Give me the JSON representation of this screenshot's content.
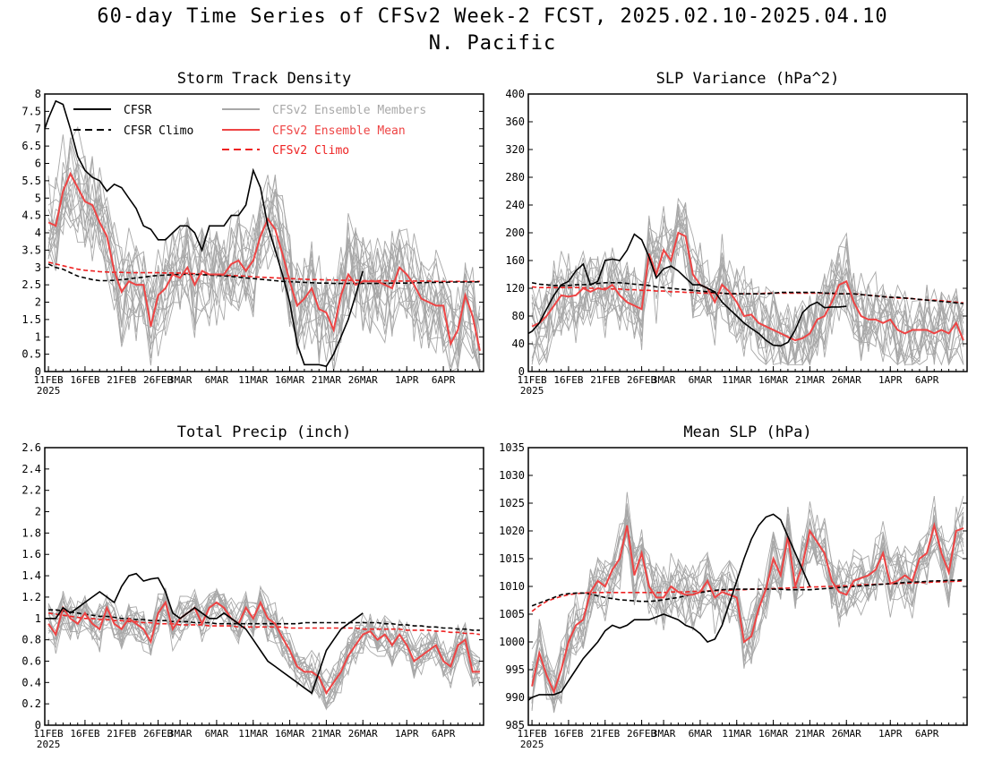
{
  "figure": {
    "title": "60-day Time Series of CFSv2 Week-2 FCST, 2025.02.10-2025.04.10",
    "subtitle": "N. Pacific"
  },
  "colors": {
    "cfsr": "#000000",
    "members": "#a8a8a8",
    "ens_mean": "#ee4444",
    "cfsv2_climo": "#ee2222"
  },
  "legend": {
    "cfsr": "CFSR",
    "cfsr_climo": "CFSR Climo",
    "members": "CFSv2 Ensemble Members",
    "ens_mean": "CFSv2 Ensemble Mean",
    "cfsv2_climo": "CFSv2 Climo"
  },
  "x_tick_labels": [
    "11FEB",
    "16FEB",
    "21FEB",
    "26FEB",
    "3MAR",
    "6MAR",
    "11MAR",
    "16MAR",
    "21MAR",
    "26MAR",
    "1APR",
    "6APR"
  ],
  "x_tick_days": [
    0,
    5,
    10,
    15,
    18,
    23,
    28,
    33,
    38,
    43,
    49,
    54
  ],
  "x_year_label": "2025",
  "chart_data": [
    {
      "type": "line",
      "title": "Storm Track Density",
      "xlabel": "",
      "ylabel": "",
      "x_unit": "days since 11FEB2025",
      "xlim": [
        -0.5,
        59.5
      ],
      "ylim": [
        0,
        8
      ],
      "yticks": [
        "0",
        "0.5",
        "1",
        "1.5",
        "2",
        "2.5",
        "3",
        "3.5",
        "4",
        "4.5",
        "5",
        "5.5",
        "6",
        "6.5",
        "7",
        "7.5",
        "8"
      ],
      "legend_position": "top",
      "cfsr_days": [
        -0.5,
        0,
        1,
        2,
        3,
        4,
        5,
        6,
        7,
        8,
        9,
        10,
        11,
        12,
        13,
        14,
        15,
        16,
        17,
        18,
        19,
        20,
        21,
        22,
        23,
        24,
        25,
        26,
        27,
        28,
        29,
        30,
        31,
        32,
        33,
        34,
        35,
        36,
        37,
        38,
        39,
        40,
        41,
        42,
        43
      ],
      "cfsr": [
        7.0,
        7.3,
        7.8,
        7.7,
        7.0,
        6.2,
        5.8,
        5.6,
        5.5,
        5.2,
        5.4,
        5.3,
        5.0,
        4.7,
        4.2,
        4.1,
        3.8,
        3.8,
        4.0,
        4.2,
        4.2,
        4.0,
        3.5,
        4.2,
        4.2,
        4.2,
        4.5,
        4.5,
        4.8,
        5.8,
        5.3,
        4.2,
        3.5,
        2.8,
        2.0,
        0.8,
        0.2,
        0.2,
        0.2,
        0.15,
        0.5,
        1.0,
        1.5,
        2.2,
        2.9
      ],
      "cfsr_climo": [
        3.1,
        3.0,
        2.95,
        2.85,
        2.75,
        2.7,
        2.65,
        2.62,
        2.62,
        2.63,
        2.65,
        2.67,
        2.7,
        2.72,
        2.75,
        2.77,
        2.78,
        2.79,
        2.8,
        2.8,
        2.8,
        2.79,
        2.78,
        2.77,
        2.76,
        2.74,
        2.72,
        2.7,
        2.68,
        2.66,
        2.64,
        2.62,
        2.6,
        2.59,
        2.58,
        2.57,
        2.56,
        2.55,
        2.55,
        2.54,
        2.54,
        2.54,
        2.54,
        2.54,
        2.54,
        2.54,
        2.54,
        2.55,
        2.55,
        2.55,
        2.56,
        2.56,
        2.57,
        2.57,
        2.57,
        2.58,
        2.58,
        2.58,
        2.58,
        2.59
      ],
      "cfsv2_climo": [
        3.15,
        3.1,
        3.05,
        3.0,
        2.95,
        2.92,
        2.9,
        2.88,
        2.87,
        2.86,
        2.86,
        2.85,
        2.85,
        2.85,
        2.85,
        2.85,
        2.84,
        2.84,
        2.84,
        2.83,
        2.82,
        2.81,
        2.8,
        2.79,
        2.78,
        2.77,
        2.76,
        2.75,
        2.73,
        2.72,
        2.71,
        2.7,
        2.69,
        2.68,
        2.67,
        2.66,
        2.65,
        2.65,
        2.64,
        2.64,
        2.63,
        2.63,
        2.63,
        2.62,
        2.62,
        2.62,
        2.62,
        2.61,
        2.61,
        2.61,
        2.61,
        2.61,
        2.61,
        2.6,
        2.6,
        2.6,
        2.6,
        2.6,
        2.6,
        2.6
      ],
      "ens_mean": [
        4.3,
        4.2,
        5.2,
        5.7,
        5.3,
        4.9,
        4.8,
        4.3,
        3.9,
        2.9,
        2.3,
        2.6,
        2.5,
        2.5,
        1.3,
        2.2,
        2.4,
        2.8,
        2.7,
        3.0,
        2.5,
        2.9,
        2.8,
        2.8,
        2.8,
        3.1,
        3.2,
        2.9,
        3.2,
        3.9,
        4.4,
        4.1,
        3.4,
        2.6,
        1.9,
        2.1,
        2.4,
        1.8,
        1.7,
        1.2,
        2.2,
        2.8,
        2.5,
        2.6,
        2.6,
        2.6,
        2.5,
        2.4,
        3.0,
        2.8,
        2.5,
        2.1,
        2.0,
        1.9,
        1.9,
        0.8,
        1.2,
        2.2,
        1.6,
        0.6
      ],
      "members_ylim": [
        0,
        7.5
      ],
      "member_spread": 0.9,
      "member_count": 16
    },
    {
      "type": "line",
      "title": "SLP Variance (hPa^2)",
      "xlabel": "",
      "ylabel": "",
      "x_unit": "days since 11FEB2025",
      "xlim": [
        -0.5,
        59.5
      ],
      "ylim": [
        0,
        400
      ],
      "yticks": [
        "0",
        "40",
        "80",
        "120",
        "160",
        "200",
        "240",
        "280",
        "320",
        "360",
        "400"
      ],
      "cfsr_days": [
        -0.5,
        0,
        1,
        2,
        3,
        4,
        5,
        6,
        7,
        8,
        9,
        10,
        11,
        12,
        13,
        14,
        15,
        16,
        17,
        18,
        19,
        20,
        21,
        22,
        23,
        24,
        25,
        26,
        27,
        28,
        29,
        30,
        31,
        32,
        33,
        34,
        35,
        36,
        37,
        38,
        39,
        40,
        41,
        42,
        43
      ],
      "cfsr": [
        55,
        58,
        70,
        90,
        110,
        125,
        130,
        145,
        155,
        125,
        130,
        160,
        162,
        160,
        175,
        198,
        190,
        165,
        135,
        148,
        152,
        145,
        135,
        125,
        125,
        120,
        115,
        100,
        90,
        80,
        70,
        62,
        55,
        45,
        38,
        37,
        42,
        60,
        85,
        95,
        100,
        92,
        93,
        93,
        94
      ],
      "cfsr_climo": [
        128,
        126,
        125,
        124,
        124,
        124,
        125,
        125,
        126,
        127,
        128,
        128,
        128,
        127,
        126,
        125,
        124,
        122,
        121,
        120,
        119,
        118,
        117,
        116,
        115,
        114,
        113,
        112,
        112,
        112,
        112,
        112,
        112,
        113,
        114,
        114,
        114,
        114,
        114,
        114,
        113,
        113,
        112,
        112,
        112,
        111,
        110,
        109,
        108,
        107,
        107,
        106,
        105,
        104,
        103,
        102,
        101,
        100,
        99,
        98
      ],
      "cfsv2_climo": [
        122,
        121,
        121,
        121,
        121,
        121,
        121,
        121,
        120,
        120,
        120,
        119,
        119,
        118,
        118,
        117,
        117,
        116,
        116,
        115,
        115,
        114,
        114,
        113,
        113,
        113,
        113,
        112,
        112,
        112,
        112,
        112,
        113,
        113,
        113,
        113,
        113,
        113,
        113,
        113,
        113,
        112,
        112,
        112,
        112,
        111,
        110,
        109,
        108,
        107,
        106,
        106,
        105,
        104,
        103,
        103,
        102,
        101,
        100,
        99
      ],
      "ens_mean": [
        65,
        70,
        80,
        95,
        110,
        108,
        110,
        120,
        115,
        120,
        118,
        125,
        110,
        100,
        95,
        90,
        170,
        140,
        175,
        160,
        200,
        195,
        140,
        125,
        120,
        100,
        125,
        115,
        100,
        80,
        82,
        70,
        65,
        60,
        55,
        50,
        45,
        48,
        55,
        75,
        80,
        100,
        125,
        130,
        100,
        80,
        75,
        75,
        70,
        75,
        60,
        55,
        60,
        60,
        60,
        55,
        60,
        55,
        70,
        45
      ],
      "members_ylim": [
        10,
        330
      ],
      "member_spread": 38,
      "member_count": 16
    },
    {
      "type": "line",
      "title": "Total Precip (inch)",
      "xlabel": "",
      "ylabel": "",
      "x_unit": "days since 11FEB2025",
      "xlim": [
        -0.5,
        59.5
      ],
      "ylim": [
        0,
        2.6
      ],
      "yticks": [
        "0",
        "0.2",
        "0.4",
        "0.6",
        "0.8",
        "1",
        "1.2",
        "1.4",
        "1.6",
        "1.8",
        "2",
        "2.2",
        "2.4",
        "2.6"
      ],
      "cfsr_days": [
        -0.5,
        0,
        1,
        2,
        3,
        4,
        5,
        6,
        7,
        8,
        9,
        10,
        11,
        12,
        13,
        14,
        15,
        16,
        17,
        18,
        19,
        20,
        21,
        22,
        23,
        24,
        25,
        26,
        27,
        28,
        29,
        30,
        31,
        32,
        33,
        34,
        35,
        36,
        37,
        38,
        39,
        40,
        41,
        42,
        43
      ],
      "cfsr": [
        1.0,
        1.0,
        1.0,
        1.1,
        1.05,
        1.1,
        1.15,
        1.2,
        1.25,
        1.2,
        1.15,
        1.3,
        1.4,
        1.42,
        1.35,
        1.37,
        1.38,
        1.25,
        1.05,
        1.0,
        1.05,
        1.1,
        1.05,
        1.0,
        1.0,
        1.05,
        1.0,
        0.95,
        0.9,
        0.8,
        0.7,
        0.6,
        0.55,
        0.5,
        0.45,
        0.4,
        0.35,
        0.3,
        0.5,
        0.7,
        0.8,
        0.9,
        0.95,
        1.0,
        1.05
      ],
      "cfsr_climo": [
        1.08,
        1.08,
        1.07,
        1.06,
        1.05,
        1.04,
        1.03,
        1.02,
        1.02,
        1.01,
        1.0,
        1.0,
        0.99,
        0.99,
        0.98,
        0.98,
        0.98,
        0.97,
        0.97,
        0.97,
        0.96,
        0.96,
        0.96,
        0.95,
        0.95,
        0.95,
        0.95,
        0.95,
        0.95,
        0.95,
        0.95,
        0.95,
        0.95,
        0.95,
        0.95,
        0.96,
        0.96,
        0.96,
        0.96,
        0.96,
        0.96,
        0.96,
        0.96,
        0.96,
        0.96,
        0.96,
        0.95,
        0.95,
        0.94,
        0.94,
        0.93,
        0.93,
        0.92,
        0.92,
        0.91,
        0.91,
        0.9,
        0.9,
        0.89,
        0.89
      ],
      "cfsv2_climo": [
        1.05,
        1.04,
        1.03,
        1.02,
        1.01,
        1.0,
        1.0,
        0.99,
        0.99,
        0.98,
        0.98,
        0.97,
        0.97,
        0.96,
        0.96,
        0.95,
        0.95,
        0.95,
        0.94,
        0.94,
        0.94,
        0.94,
        0.93,
        0.93,
        0.93,
        0.93,
        0.92,
        0.92,
        0.92,
        0.92,
        0.92,
        0.92,
        0.92,
        0.91,
        0.91,
        0.91,
        0.91,
        0.91,
        0.91,
        0.91,
        0.91,
        0.91,
        0.91,
        0.9,
        0.9,
        0.9,
        0.9,
        0.9,
        0.9,
        0.89,
        0.89,
        0.89,
        0.89,
        0.88,
        0.88,
        0.87,
        0.87,
        0.86,
        0.86,
        0.85
      ],
      "ens_mean": [
        0.95,
        0.85,
        1.1,
        1.0,
        0.95,
        1.05,
        0.95,
        0.9,
        1.1,
        0.95,
        0.9,
        1.0,
        0.95,
        0.9,
        0.78,
        1.05,
        1.15,
        0.9,
        1.0,
        1.05,
        1.1,
        0.95,
        1.1,
        1.15,
        1.1,
        1.0,
        0.95,
        1.1,
        1.0,
        1.15,
        1.0,
        0.95,
        0.82,
        0.7,
        0.55,
        0.5,
        0.5,
        0.45,
        0.3,
        0.4,
        0.5,
        0.65,
        0.75,
        0.85,
        0.88,
        0.8,
        0.85,
        0.75,
        0.85,
        0.75,
        0.6,
        0.65,
        0.7,
        0.75,
        0.6,
        0.55,
        0.75,
        0.8,
        0.5,
        0.5
      ],
      "members_ylim": [
        0.15,
        1.45
      ],
      "member_spread": 0.12,
      "member_count": 16
    },
    {
      "type": "line",
      "title": "Mean SLP (hPa)",
      "xlabel": "",
      "ylabel": "",
      "x_unit": "days since 11FEB2025",
      "xlim": [
        -0.5,
        59.5
      ],
      "ylim": [
        985,
        1035
      ],
      "yticks": [
        "985",
        "990",
        "995",
        "1000",
        "1005",
        "1010",
        "1015",
        "1020",
        "1025",
        "1030",
        "1035"
      ],
      "cfsr_days": [
        -0.5,
        0,
        1,
        2,
        3,
        4,
        5,
        6,
        7,
        8,
        9,
        10,
        11,
        12,
        13,
        14,
        15,
        16,
        17,
        18,
        19,
        20,
        21,
        22,
        23,
        24,
        25,
        26,
        27,
        28,
        29,
        30,
        31,
        32,
        33,
        34,
        35,
        36,
        37,
        38,
        39,
        40,
        41,
        42,
        43
      ],
      "cfsr": [
        989.5,
        990,
        990.5,
        990.5,
        990.5,
        991,
        993,
        995,
        997,
        998.5,
        1000,
        1002,
        1003,
        1002.5,
        1003,
        1004,
        1004,
        1004,
        1004.5,
        1005,
        1004.5,
        1004,
        1003,
        1002.5,
        1001.5,
        1000,
        1000.5,
        1003,
        1007,
        1011,
        1015,
        1018.5,
        1021,
        1022.5,
        1023,
        1022,
        1019,
        1016,
        1013,
        1010
      ],
      "cfsr_days_override": [
        -0.5,
        0,
        1,
        2,
        3,
        4,
        5,
        6,
        7,
        8,
        9,
        10,
        11,
        12,
        13,
        14,
        15,
        16,
        17,
        18,
        19,
        20,
        21,
        22,
        23,
        24,
        25,
        26,
        27,
        28,
        29,
        30,
        31,
        32,
        33,
        34,
        35,
        36,
        37,
        38
      ],
      "cfsr_climo": [
        1006.5,
        1007,
        1007.5,
        1008,
        1008.5,
        1008.7,
        1008.8,
        1008.8,
        1008.6,
        1008.3,
        1008,
        1007.8,
        1007.6,
        1007.5,
        1007.4,
        1007.3,
        1007.3,
        1007.4,
        1007.6,
        1007.8,
        1008,
        1008.3,
        1008.6,
        1008.9,
        1009.1,
        1009.3,
        1009.4,
        1009.5,
        1009.5,
        1009.5,
        1009.5,
        1009.5,
        1009.5,
        1009.5,
        1009.5,
        1009.4,
        1009.4,
        1009.4,
        1009.4,
        1009.5,
        1009.6,
        1009.7,
        1009.8,
        1009.9,
        1010,
        1010.1,
        1010.2,
        1010.3,
        1010.4,
        1010.5,
        1010.6,
        1010.7,
        1010.8,
        1010.8,
        1010.9,
        1011,
        1011,
        1011.1,
        1011.1,
        1011.2
      ],
      "cfsv2_climo": [
        1005.5,
        1006.5,
        1007.3,
        1007.8,
        1008.2,
        1008.5,
        1008.7,
        1008.8,
        1008.9,
        1008.9,
        1008.9,
        1008.9,
        1008.9,
        1008.9,
        1008.9,
        1008.9,
        1008.9,
        1008.9,
        1008.9,
        1009,
        1009,
        1009,
        1009.1,
        1009.1,
        1009.2,
        1009.2,
        1009.3,
        1009.3,
        1009.4,
        1009.4,
        1009.5,
        1009.5,
        1009.6,
        1009.6,
        1009.7,
        1009.7,
        1009.8,
        1009.8,
        1009.9,
        1009.9,
        1010,
        1010,
        1010.1,
        1010.1,
        1010.2,
        1010.3,
        1010.3,
        1010.4,
        1010.4,
        1010.5,
        1010.5,
        1010.6,
        1010.6,
        1010.7,
        1010.7,
        1010.8,
        1010.8,
        1010.9,
        1010.9,
        1011
      ],
      "ens_mean": [
        992,
        998,
        994,
        991,
        995,
        1000,
        1003,
        1004,
        1009,
        1011,
        1010,
        1013,
        1015,
        1021,
        1012,
        1016,
        1010,
        1008,
        1008,
        1010,
        1009,
        1008.5,
        1008.5,
        1009,
        1011,
        1008,
        1009,
        1008.5,
        1008,
        1000,
        1001,
        1006,
        1009.5,
        1015,
        1012,
        1019,
        1010,
        1014,
        1020,
        1018,
        1016,
        1011,
        1009,
        1008.5,
        1011,
        1011.5,
        1012,
        1013,
        1016,
        1010.5,
        1011,
        1012,
        1011,
        1015,
        1016,
        1021,
        1016,
        1012.5,
        1020,
        1020.5
      ],
      "members_ylim": [
        986,
        1027
      ],
      "member_spread": 3.5,
      "member_count": 16
    }
  ]
}
